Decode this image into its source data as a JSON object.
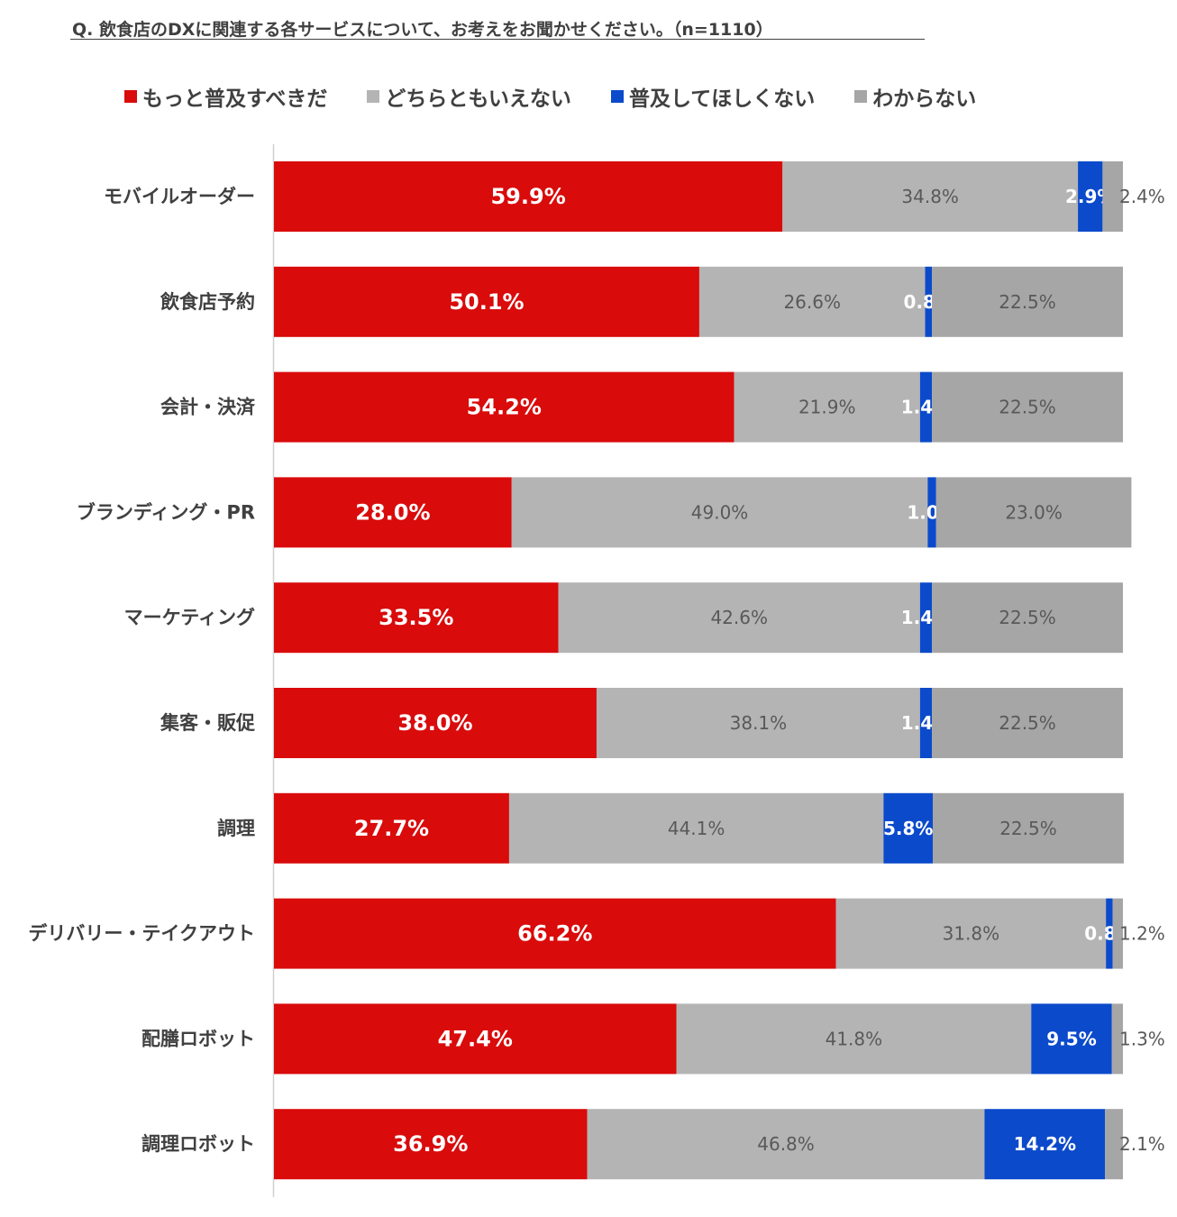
{
  "title": "Q. 飲食店のDXに関連する各サービスについて、お考えをお聞かせください。（n=1110）",
  "legend": [
    {
      "label": "もっと普及すべきだ",
      "color": "#D90B0B"
    },
    {
      "label": "どちらともいえない",
      "color": "#B4B4B4"
    },
    {
      "label": "普及してほしくない",
      "color": "#0B4ACB"
    },
    {
      "label": "わからない",
      "color": "#A6A6A6"
    }
  ],
  "chart_data": {
    "type": "bar",
    "orientation": "horizontal",
    "stacked": true,
    "xlim": [
      0,
      100
    ],
    "title": "Q. 飲食店のDXに関連する各サービスについて、お考えをお聞かせください。（n=1110）",
    "categories": [
      "モバイルオーダー",
      "飲食店予約",
      "会計・決済",
      "ブランディング・PR",
      "マーケティング",
      "集客・販促",
      "調理",
      "デリバリー・テイクアウト",
      "配膳ロボット",
      "調理ロボット"
    ],
    "series": [
      {
        "name": "もっと普及すべきだ",
        "color": "#D90B0B",
        "values": [
          59.9,
          50.1,
          54.2,
          28.0,
          33.5,
          38.0,
          27.7,
          66.2,
          47.4,
          36.9
        ]
      },
      {
        "name": "どちらともいえない",
        "color": "#B4B4B4",
        "values": [
          34.8,
          26.6,
          21.9,
          49.0,
          42.6,
          38.1,
          44.1,
          31.8,
          41.8,
          46.8
        ]
      },
      {
        "name": "普及してほしくない",
        "color": "#0B4ACB",
        "values": [
          2.9,
          0.8,
          1.4,
          1.0,
          1.4,
          1.4,
          5.8,
          0.8,
          9.5,
          14.2
        ]
      },
      {
        "name": "わからない",
        "color": "#A6A6A6",
        "values": [
          2.4,
          22.5,
          22.5,
          23.0,
          22.5,
          22.5,
          22.5,
          1.2,
          1.3,
          2.1
        ]
      }
    ]
  }
}
